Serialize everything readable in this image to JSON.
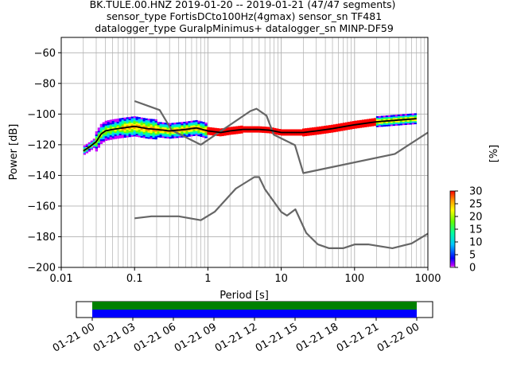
{
  "title_lines": [
    "BK.TULE.00.HNZ   2019-01-20 -- 2019-01-21  (47/47 segments)",
    "sensor_type FortisDCto100Hz(4gmax) sensor_sn TF481",
    "datalogger_type GuralpMinimus+ datalogger_sn MINP-DF59"
  ],
  "chart_data": [
    {
      "type": "heatmap",
      "subtype": "probabilistic-power-spectral-density",
      "xlabel": "Period [s]",
      "ylabel": "Power [dB]",
      "x_scale": "log",
      "xlim": [
        0.01,
        1000
      ],
      "ylim": [
        -200,
        -50
      ],
      "x_ticks": [
        0.01,
        0.1,
        1,
        10,
        100,
        1000
      ],
      "x_tick_labels": [
        "0.01",
        "0.1",
        "1",
        "10",
        "100",
        "1000"
      ],
      "y_ticks": [
        -200,
        -180,
        -160,
        -140,
        -120,
        -100,
        -80,
        -60
      ],
      "y_tick_labels": [
        "−200",
        "−180",
        "−160",
        "−140",
        "−120",
        "−100",
        "−80",
        "−60"
      ],
      "grid": true,
      "colorbar": {
        "label": "[%]",
        "range": [
          0,
          30
        ],
        "ticks": [
          0,
          5,
          10,
          15,
          20,
          25,
          30
        ],
        "tick_labels": [
          "0",
          "5",
          "10",
          "15",
          "20",
          "25",
          "30"
        ],
        "colormap": [
          "#ffffff",
          "#c800ff",
          "#0000ff",
          "#00c8ff",
          "#00ffa0",
          "#64ff00",
          "#ffff00",
          "#ff9600",
          "#ff0000"
        ]
      },
      "series": [
        {
          "role": "new-high-noise-model",
          "color": "#666666",
          "x": [
            0.1,
            0.22,
            0.32,
            0.8,
            3.8,
            4.6,
            6.3,
            7.9,
            15.4,
            20,
            354.8,
            1000
          ],
          "y": [
            -91.5,
            -97.4,
            -110.5,
            -120,
            -98,
            -96.5,
            -101,
            -113.5,
            -120.3,
            -138.5,
            -126,
            -112
          ]
        },
        {
          "role": "new-low-noise-model",
          "color": "#666666",
          "x": [
            0.1,
            0.17,
            0.4,
            0.8,
            1.24,
            2.4,
            4.3,
            5,
            6,
            10,
            12,
            15.6,
            21.9,
            31.6,
            45,
            70,
            101,
            154,
            328,
            600,
            1000
          ],
          "y": [
            -168,
            -166.7,
            -166.7,
            -169.2,
            -163.7,
            -148.6,
            -141.1,
            -141.1,
            -149,
            -163.8,
            -166.2,
            -162.1,
            -177.5,
            -185,
            -187.5,
            -187.5,
            -185,
            -185,
            -187.5,
            -184.4,
            -178
          ]
        },
        {
          "role": "mode",
          "color": "#000000",
          "x": [
            0.02,
            0.025,
            0.03,
            0.035,
            0.04,
            0.05,
            0.07,
            0.1,
            0.15,
            0.2,
            0.3,
            0.5,
            0.7,
            1,
            1.5,
            2,
            3,
            5,
            7,
            10,
            20,
            30,
            50,
            100,
            200,
            500,
            700
          ],
          "y": [
            -124,
            -121,
            -118,
            -113,
            -111,
            -110,
            -109,
            -108,
            -109.5,
            -110,
            -111,
            -110,
            -109,
            -111,
            -112,
            -111,
            -110,
            -110,
            -110.5,
            -112,
            -112,
            -111,
            -109.5,
            -107,
            -105,
            -103.5,
            -103
          ]
        }
      ],
      "density_bands": [
        {
          "x": [
            0.02,
            1000
          ],
          "note": "distribution columns from 0.02 s to 700 s"
        }
      ]
    },
    {
      "type": "bar",
      "subtype": "data-availability",
      "x_tick_labels": [
        "01-21 00",
        "01-21 03",
        "01-21 06",
        "01-21 09",
        "01-21 12",
        "01-21 15",
        "01-21 18",
        "01-21 21",
        "01-22 00"
      ],
      "coverage_start": "01-21 00",
      "coverage_end": "01-22 00",
      "bars": [
        {
          "role": "availability",
          "color": "#008000",
          "start_hour": 0,
          "end_hour": 24
        },
        {
          "role": "gaps-overlap",
          "color": "#0000ff",
          "start_hour": 0,
          "end_hour": 24
        }
      ]
    }
  ]
}
